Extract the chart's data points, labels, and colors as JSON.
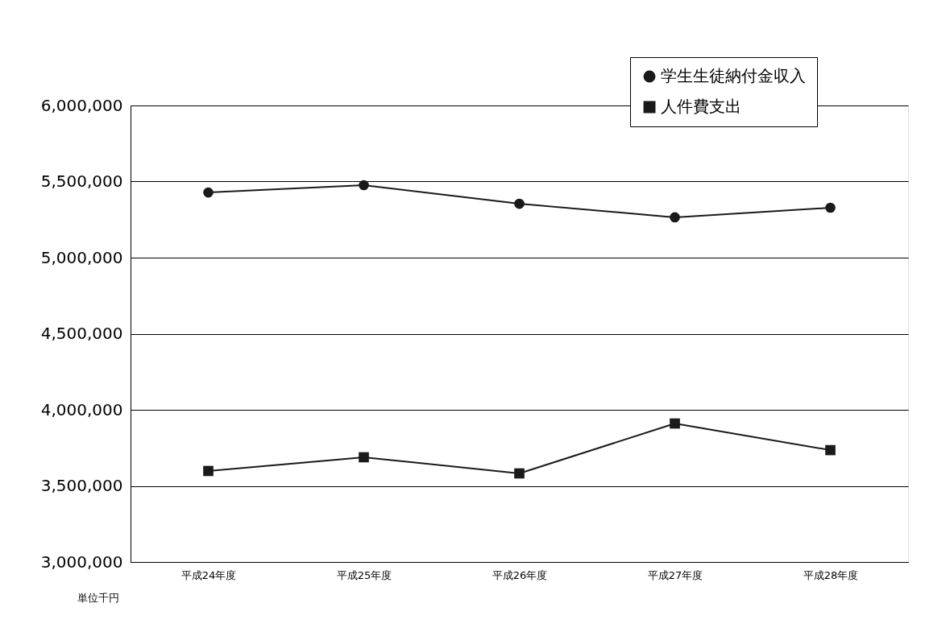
{
  "chart_data": {
    "type": "line",
    "categories": [
      "平成24年度",
      "平成25年度",
      "平成26年度",
      "平成27年度",
      "平成28年度"
    ],
    "series": [
      {
        "name": "学生生徒納付金収入",
        "color": "#1a1a1a",
        "marker": "circle",
        "values": [
          5428000,
          5476000,
          5354000,
          5265000,
          5328000
        ]
      },
      {
        "name": "人件費支出",
        "color": "#1a1a1a",
        "marker": "square",
        "values": [
          3598000,
          3688000,
          3582000,
          3910000,
          3735000
        ]
      }
    ],
    "ylim": [
      3000000,
      6000000
    ],
    "yticks": [
      {
        "value": 3000000,
        "label": "3,000,000"
      },
      {
        "value": 3500000,
        "label": "3,500,000"
      },
      {
        "value": 4000000,
        "label": "4,000,000"
      },
      {
        "value": 4500000,
        "label": "4,500,000"
      },
      {
        "value": 5000000,
        "label": "5,000,000"
      },
      {
        "value": 5500000,
        "label": "5,500,000"
      },
      {
        "value": 6000000,
        "label": "6,000,000"
      }
    ],
    "grid": "y",
    "legend": "top right",
    "annotations": [
      "単位千円"
    ]
  }
}
